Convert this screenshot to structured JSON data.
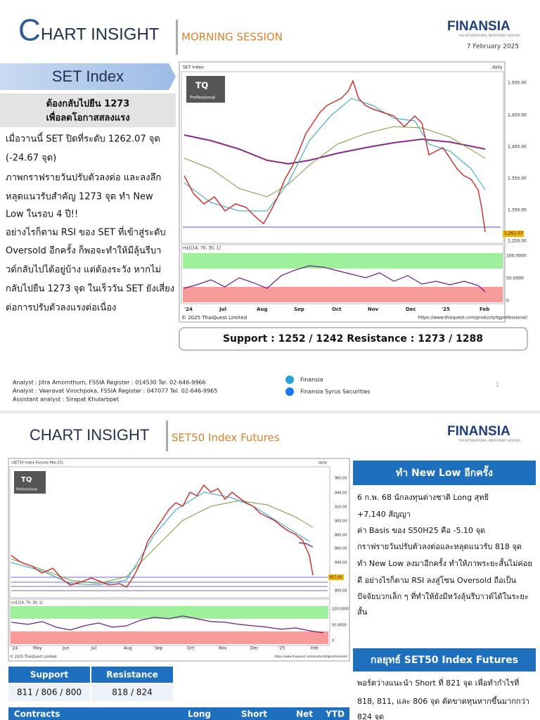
{
  "page1": {
    "header": {
      "title_initial": "C",
      "title_rest": "HART INSIGHT",
      "session": "MORNING SESSION",
      "logo": "FINANSIA",
      "logo_tagline": "THE INTERNATIONAL INVESTMENT ADVISOR",
      "date": "7 February 2025"
    },
    "section": "SET Index",
    "headline": [
      "ต้องกลับไปยืน 1273",
      "เพื่อลดโอกาสสลงแรง"
    ],
    "paragraph": [
      "เมื่อวานนี้ SET ปิดที่ระดับ 1262.07 จุด",
      "(-24.67 จุด)",
      "ภาพกราฟรายวันปรับตัวลงต่อ และลงลึก",
      "หลุดแนวรับสำคัญ 1273 จุด ทำ New",
      "Low ในรอบ 4 ปี!!",
      "อย่างไรก็ตาม RSI ของ SET ที่เข้าสู่ระดับ",
      "Oversold อีกครั้ง ก็พอจะทำให้มีลุ้นรีบา",
      "วด์กลับไปได้อยู่บ้าง แต่ต้องระวัง หากไม่",
      "กลับไปยืน 1273 จุด ในเร็ววัน SET ยังเสี่ยง",
      "ต่อการปรับตัวลงแรงต่อเนื่อง"
    ],
    "chart": {
      "name": "SET Index",
      "period": "daily",
      "badge": "TQ",
      "badge_sub": "Professional",
      "price_ticks": [
        "1,500.00",
        "1,450.00",
        "1,400.00",
        "1,350.00",
        "1,300.00",
        "1,250.00"
      ],
      "last_price": "1,262.07",
      "rsi_label": "rsi1(14, 70, 30, 1)",
      "rsi_ticks": [
        "100.0000",
        "50.0000",
        "0"
      ],
      "months": [
        "'24",
        "Jul",
        "Aug",
        "Sep",
        "Oct",
        "Nov",
        "Dec",
        "'25",
        "Feb"
      ],
      "copyright": "© 2025 ThaiQuest Limited",
      "url": "https://www.thaiquest.com/products/tqprofessional/"
    },
    "levels": "Support : 1252 / 1242  Resistance : 1273 / 1288",
    "analysts": [
      "Analyst :  Jitra Amornthum, FSSIA    Register : 014530     Tel. 02-646-9966",
      "Analyst :  Veeravat Virochpoka, FSSIA    Register : 047077     Tel. 02-646-9965",
      "Assistant analyst : Sirapat Khularbpet"
    ],
    "social": [
      "Finansia",
      "Finansia Syrus Securities"
    ],
    "page_number": "1"
  },
  "page2": {
    "header": {
      "title": "CHART INSIGHT",
      "section": "SET50 Index Futures",
      "logo": "FINANSIA",
      "logo_tagline": "THE INTERNATIONAL INVESTMENT ADVISOR"
    },
    "chart": {
      "name": "(SET50 Index Futures Mar-25)",
      "period": "daily",
      "badge": "TQ",
      "badge_sub": "Professional",
      "price_ticks": [
        "960.00",
        "940.00",
        "920.00",
        "900.00",
        "880.00",
        "860.00",
        "840.00",
        "800.00"
      ],
      "last_price": "817.00",
      "rsi_label": "rsi1(14, 70, 30, 1)",
      "rsi_ticks": [
        "100.0000",
        "50.0000",
        "0"
      ],
      "months": [
        "'24",
        "May",
        "Jun",
        "Jul",
        "Aug",
        "Sep",
        "Oct",
        "Nov",
        "Dec",
        "'25",
        "Feb"
      ],
      "copyright": "© 2025 ThaiQuest Limited",
      "url": "https://www.thaiquest.com/products/tqprofessional/"
    },
    "summary_title": "ทำ New Low อีกครั้ง",
    "summary": [
      "6 ก.พ. 68 นักลงทุนต่างชาติ Long สุทธิ",
      "+7,140 สัญญา",
      "ค่า Basis ของ S50H25 คือ -5.10 จุด",
      "กราฟรายวันปรับตัวลงต่อและหลุดแนวรับ 818 จุด",
      "ทำ New Low ลงมาอีกครั้ง ทำให้ภาพระยะสั้นไม่ค่อย",
      "ดี อย่างไรก็ตาม RSI ลงสู่โซน Oversold ถือเป็น",
      "ปัจจัยบวกเล็ก ๆ ที่ทำให้ยังมีหวังลุ้นรีบาวด์ได้ในระยะ",
      "สั้น"
    ],
    "strategy_title": "กลยุทธ์ SET50 Index Futures",
    "strategy": [
      "พอร์ตว่างแนะนำ Short ที่ 821 จุด เพื่อทำกำไรที่",
      "818, 811, และ 806 จุด ตัดขาดทุนหากขึ้นมากกว่า",
      "824 จุด"
    ],
    "levels_table": {
      "header": [
        "Support",
        "Resistance"
      ],
      "row": [
        "811 / 806 / 800",
        "818 / 824"
      ]
    },
    "contracts_table": {
      "header": [
        "Contracts",
        "Long",
        "Short",
        "Net",
        "YTD"
      ]
    }
  }
}
